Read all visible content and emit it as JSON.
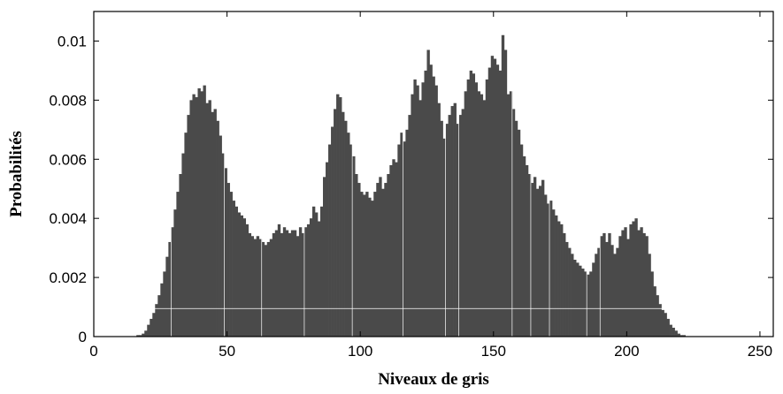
{
  "chart_data": {
    "type": "bar",
    "title": "",
    "xlabel": "Niveaux de gris",
    "ylabel": "Probabilités",
    "xlim": [
      0,
      255
    ],
    "ylim": [
      0,
      0.011
    ],
    "xticks": [
      0,
      50,
      100,
      150,
      200,
      250
    ],
    "xtick_labels": [
      "0",
      "50",
      "100",
      "150",
      "200",
      "250"
    ],
    "yticks": [
      0,
      0.002,
      0.004,
      0.006,
      0.008,
      0.01
    ],
    "ytick_labels": [
      "0",
      "0.002",
      "0.004",
      "0.006",
      "0.008",
      "0.01"
    ],
    "grid": false,
    "bar_color": "#4a4a4a",
    "series": [
      {
        "x_start": 0,
        "values": [
          0,
          0,
          0,
          0,
          0,
          0,
          0,
          0,
          0,
          0,
          0,
          0,
          0,
          0,
          0,
          0,
          5e-05,
          5e-05,
          0.0001,
          0.0002,
          0.0004,
          0.0006,
          0.0008,
          0.0011,
          0.0014,
          0.0018,
          0.0022,
          0.0027,
          0.0032,
          0.0037,
          0.0043,
          0.0049,
          0.0055,
          0.0062,
          0.0069,
          0.0075,
          0.008,
          0.0082,
          0.0081,
          0.0084,
          0.0083,
          0.0085,
          0.0079,
          0.008,
          0.0076,
          0.0077,
          0.0073,
          0.0068,
          0.0062,
          0.0057,
          0.0052,
          0.0049,
          0.0046,
          0.0044,
          0.0042,
          0.0041,
          0.004,
          0.0038,
          0.0035,
          0.0034,
          0.0033,
          0.0034,
          0.0033,
          0.0032,
          0.0031,
          0.0032,
          0.0033,
          0.0035,
          0.0036,
          0.0038,
          0.0035,
          0.0037,
          0.0036,
          0.0035,
          0.0036,
          0.0036,
          0.0034,
          0.0037,
          0.0035,
          0.0037,
          0.0038,
          0.004,
          0.0044,
          0.0042,
          0.0039,
          0.0044,
          0.0054,
          0.0059,
          0.0065,
          0.0071,
          0.0077,
          0.0082,
          0.0081,
          0.0076,
          0.0073,
          0.0069,
          0.0065,
          0.0061,
          0.0055,
          0.0052,
          0.0049,
          0.0048,
          0.0049,
          0.0047,
          0.0046,
          0.0049,
          0.0052,
          0.0054,
          0.005,
          0.0052,
          0.0055,
          0.0058,
          0.006,
          0.0059,
          0.0065,
          0.0069,
          0.0066,
          0.007,
          0.0075,
          0.0082,
          0.0087,
          0.0085,
          0.008,
          0.0086,
          0.009,
          0.0097,
          0.0092,
          0.0088,
          0.0085,
          0.0079,
          0.0073,
          0.0067,
          0.0072,
          0.0075,
          0.0078,
          0.0079,
          0.0072,
          0.0075,
          0.0077,
          0.0083,
          0.0087,
          0.009,
          0.0089,
          0.0086,
          0.0083,
          0.0082,
          0.008,
          0.0087,
          0.0091,
          0.0095,
          0.0094,
          0.0092,
          0.009,
          0.0102,
          0.0097,
          0.0082,
          0.0083,
          0.0077,
          0.0073,
          0.007,
          0.0065,
          0.0061,
          0.0058,
          0.0055,
          0.0052,
          0.0054,
          0.005,
          0.0051,
          0.0053,
          0.0048,
          0.0045,
          0.0046,
          0.0043,
          0.0041,
          0.0039,
          0.0038,
          0.0035,
          0.0032,
          0.003,
          0.0028,
          0.0026,
          0.0025,
          0.0024,
          0.0023,
          0.0022,
          0.0021,
          0.0022,
          0.0025,
          0.0028,
          0.003,
          0.0034,
          0.0035,
          0.0032,
          0.0035,
          0.0031,
          0.0028,
          0.003,
          0.0034,
          0.0036,
          0.0037,
          0.0033,
          0.0038,
          0.0039,
          0.004,
          0.0036,
          0.0037,
          0.0035,
          0.0034,
          0.0028,
          0.0022,
          0.0017,
          0.0014,
          0.0011,
          0.0009,
          0.0008,
          0.0006,
          0.0004,
          0.0003,
          0.0002,
          0.0001,
          5e-05,
          5e-05,
          0,
          0,
          0,
          0,
          0,
          0,
          0,
          0,
          0,
          0,
          0,
          0,
          0,
          0,
          0,
          0,
          0,
          0,
          0,
          0,
          0,
          0,
          0,
          0,
          0,
          0,
          0,
          0,
          0,
          0,
          0,
          0,
          0,
          0
        ]
      }
    ]
  }
}
